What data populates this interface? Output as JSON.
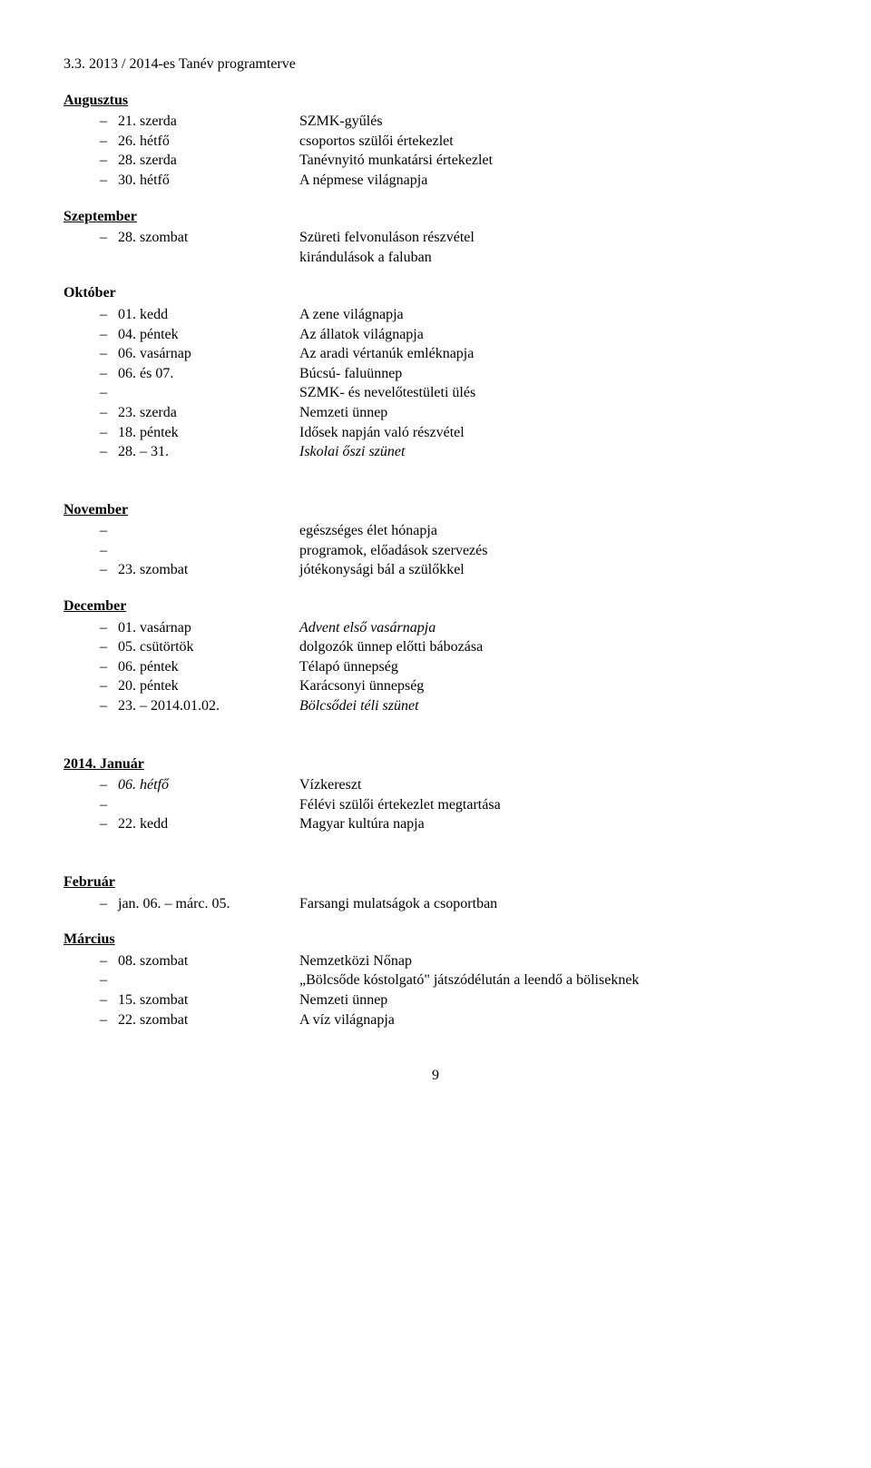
{
  "title": "3.3. 2013 / 2014-es Tanév programterve",
  "page_number": "9",
  "months": {
    "augusztus": {
      "heading": "Augusztus",
      "items": [
        {
          "date": "21. szerda",
          "desc": "SZMK-gyűlés"
        },
        {
          "date": "26. hétfő",
          "desc": "csoportos szülői értekezlet"
        },
        {
          "date": "28. szerda",
          "desc": "Tanévnyitó munkatársi értekezlet"
        },
        {
          "date": "30. hétfő",
          "desc": "A népmese világnapja"
        }
      ]
    },
    "szeptember": {
      "heading": "Szeptember",
      "items": [
        {
          "date": "28. szombat",
          "desc": "Szüreti felvonuláson részvétel"
        },
        {
          "date": "",
          "desc": "kirándulások a faluban"
        }
      ]
    },
    "oktober": {
      "heading": "Október",
      "items": [
        {
          "date": "01. kedd",
          "desc": "A zene világnapja"
        },
        {
          "date": "04. péntek",
          "desc": "Az állatok világnapja"
        },
        {
          "date": "06. vasárnap",
          "desc": "Az aradi vértanúk emléknapja"
        },
        {
          "date": "06. és 07.",
          "desc": "Búcsú- faluünnep"
        },
        {
          "date": "",
          "desc": "SZMK- és nevelőtestületi ülés"
        },
        {
          "date": "23. szerda",
          "desc": "Nemzeti ünnep"
        },
        {
          "date": "18. péntek",
          "desc": "Idősek napján való részvétel"
        },
        {
          "date": "28. – 31.",
          "desc": "Iskolai őszi szünet",
          "italic": true
        }
      ]
    },
    "november": {
      "heading": "November",
      "items": [
        {
          "date": "",
          "desc": "egészséges élet hónapja"
        },
        {
          "date": "",
          "desc": "programok, előadások szervezés"
        },
        {
          "date": "23. szombat",
          "desc": "jótékonysági bál a szülőkkel"
        }
      ]
    },
    "december": {
      "heading": "December",
      "items": [
        {
          "date": "01. vasárnap",
          "desc": "Advent első vasárnapja",
          "italic": true
        },
        {
          "date": "05. csütörtök",
          "desc": "dolgozók ünnep előtti bábozása"
        },
        {
          "date": "06. péntek",
          "desc": "Télapó ünnepség"
        },
        {
          "date": "20. péntek",
          "desc": "Karácsonyi ünnepség"
        },
        {
          "date": "23. – 2014.01.02.",
          "desc": "Bölcsődei téli szünet",
          "italic": true
        }
      ]
    },
    "januar": {
      "heading": "2014. Január",
      "items": [
        {
          "date": "06. hétfő",
          "desc": "Vízkereszt",
          "date_italic": true
        },
        {
          "date": "",
          "desc": "Félévi szülői értekezlet megtartása"
        },
        {
          "date": "22. kedd",
          "desc": "Magyar kultúra napja"
        }
      ]
    },
    "februar": {
      "heading": "Február",
      "items": [
        {
          "date": "jan. 06. – márc. 05.",
          "desc": "Farsangi mulatságok a csoportban"
        }
      ]
    },
    "marcius": {
      "heading": "Március",
      "items": [
        {
          "date": "08. szombat",
          "desc": "Nemzetközi Nőnap"
        },
        {
          "date": "",
          "desc": "„Bölcsőde kóstolgató\" játszódélután a leendő a böliseknek"
        },
        {
          "date": "15. szombat",
          "desc": "Nemzeti ünnep"
        },
        {
          "date": "22. szombat",
          "desc": "A víz világnapja"
        }
      ]
    }
  }
}
